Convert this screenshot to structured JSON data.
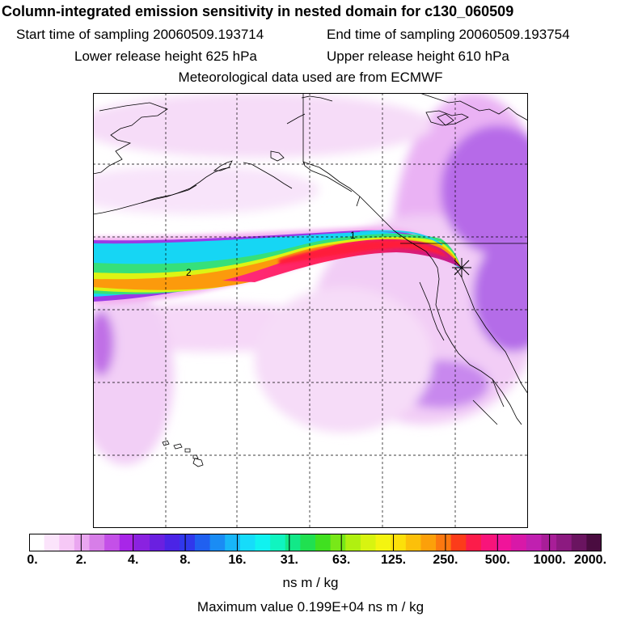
{
  "title": "Column-integrated emission sensitivity in nested domain for c130_060509",
  "start_label": "Start time of sampling 20060509.193714",
  "end_label": "End time of sampling 20060509.193754",
  "lower_label": "Lower release height  625 hPa",
  "upper_label": "Upper release height  610 hPa",
  "met_label": "Meteorological data used are from ECMWF",
  "map": {
    "plume_labels": [
      "1",
      "2"
    ],
    "release_marker": "star-cross"
  },
  "colorbar": {
    "tick_labels": [
      "0.",
      "2.",
      "4.",
      "8.",
      "16.",
      "31.",
      "63.",
      "125.",
      "250.",
      "500.",
      "1000.",
      "2000."
    ],
    "colors": [
      "#ffffff",
      "#fbe4fb",
      "#f6c8f6",
      "#eaa6f0",
      "#d77ee8",
      "#c450e8",
      "#a826e8",
      "#8a22e0",
      "#6a20e0",
      "#4b24e6",
      "#3038ec",
      "#2060f0",
      "#1a8cf4",
      "#18b6f8",
      "#16dcfa",
      "#10f2f0",
      "#10f4c0",
      "#12e888",
      "#20e050",
      "#40e020",
      "#78e818",
      "#b0f010",
      "#d8f410",
      "#f4f410",
      "#fce00a",
      "#fcc00a",
      "#fca00a",
      "#fc7810",
      "#fc3c1a",
      "#fc1c4a",
      "#f8147a",
      "#f0149a",
      "#d818a8",
      "#c020b0",
      "#a81e98",
      "#8c1a80",
      "#6a1460",
      "#4a0c40"
    ],
    "units": "ns m / kg",
    "max_value": "Maximum value  0.199E+04 ns m / kg"
  }
}
